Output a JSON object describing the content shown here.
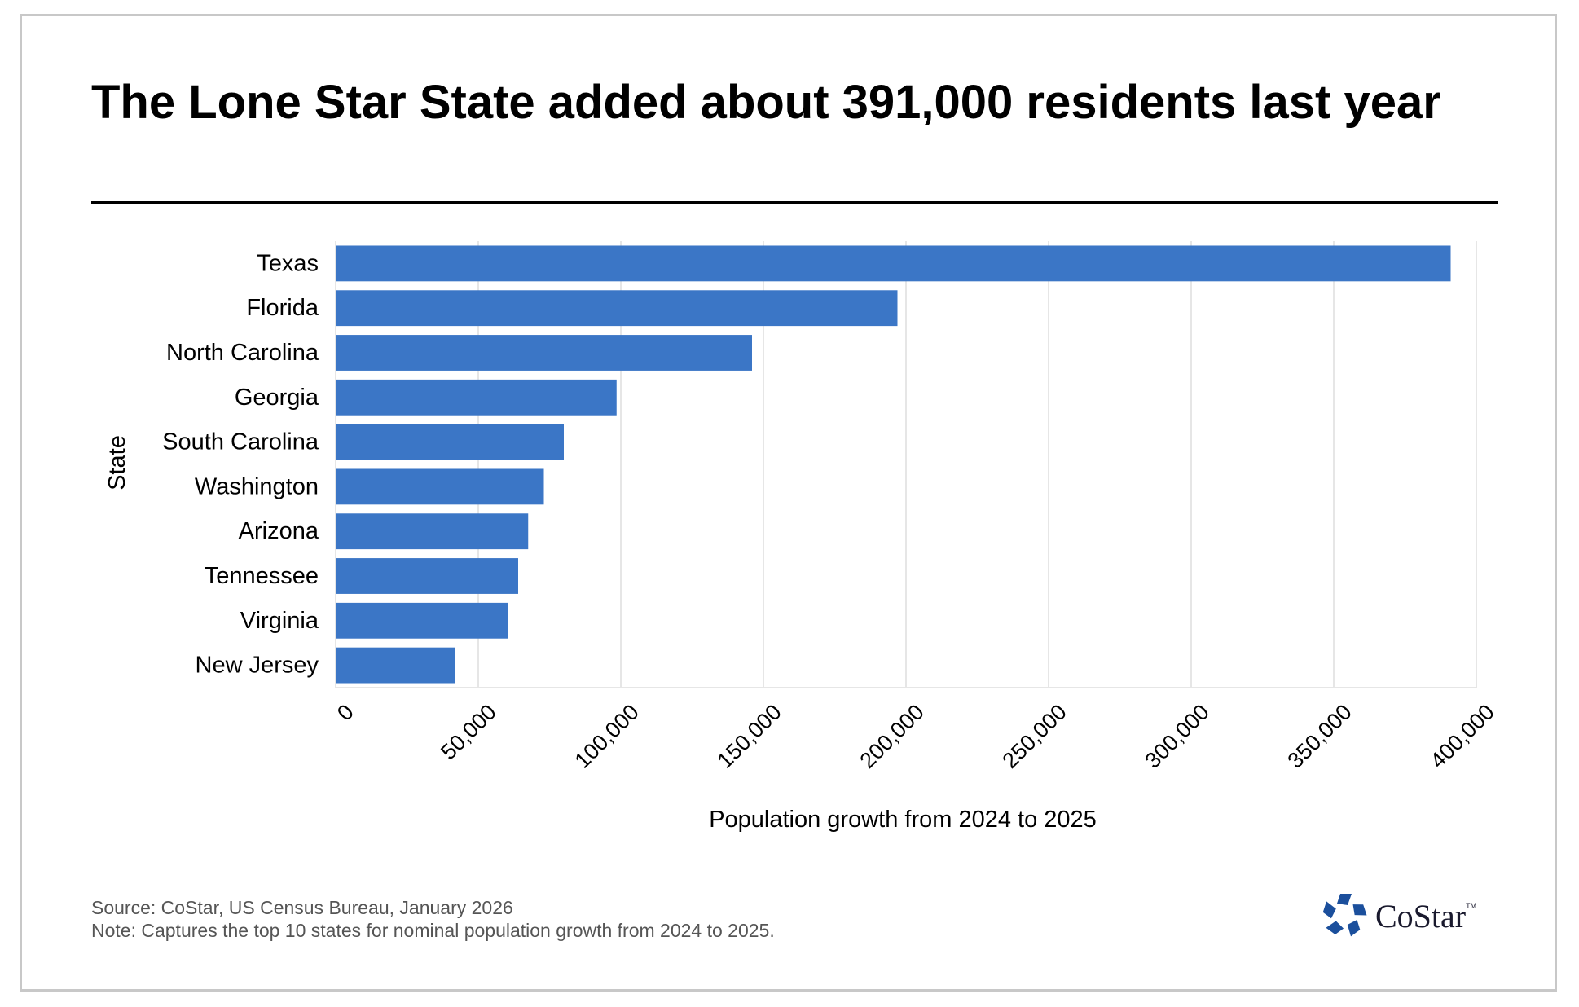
{
  "chart_data": {
    "type": "bar",
    "orientation": "horizontal",
    "title": "The Lone Star State added about 391,000 residents last year",
    "xlabel": "Population growth from 2024 to 2025",
    "ylabel": "State",
    "categories": [
      "Texas",
      "Florida",
      "North Carolina",
      "Georgia",
      "South Carolina",
      "Washington",
      "Arizona",
      "Tennessee",
      "Virginia",
      "New Jersey"
    ],
    "values": [
      391000,
      197000,
      146000,
      98500,
      80000,
      73000,
      67500,
      64000,
      60500,
      42000
    ],
    "xlim": [
      0,
      400000
    ],
    "xticks": [
      0,
      50000,
      100000,
      150000,
      200000,
      250000,
      300000,
      350000,
      400000
    ],
    "xtick_labels": [
      "0",
      "50,000",
      "100,000",
      "150,000",
      "200,000",
      "250,000",
      "300,000",
      "350,000",
      "400,000"
    ],
    "grid": true,
    "bar_color": "#3b76c6"
  },
  "footer": {
    "source": "Source: CoStar, US Census Bureau, January 2026",
    "note": "Note: Captures the top 10 states for nominal population growth from 2024 to 2025."
  },
  "logo": {
    "name": "CoStar",
    "tm": "TM",
    "icon": "costar-star-icon",
    "color": "#1b4f9c"
  }
}
